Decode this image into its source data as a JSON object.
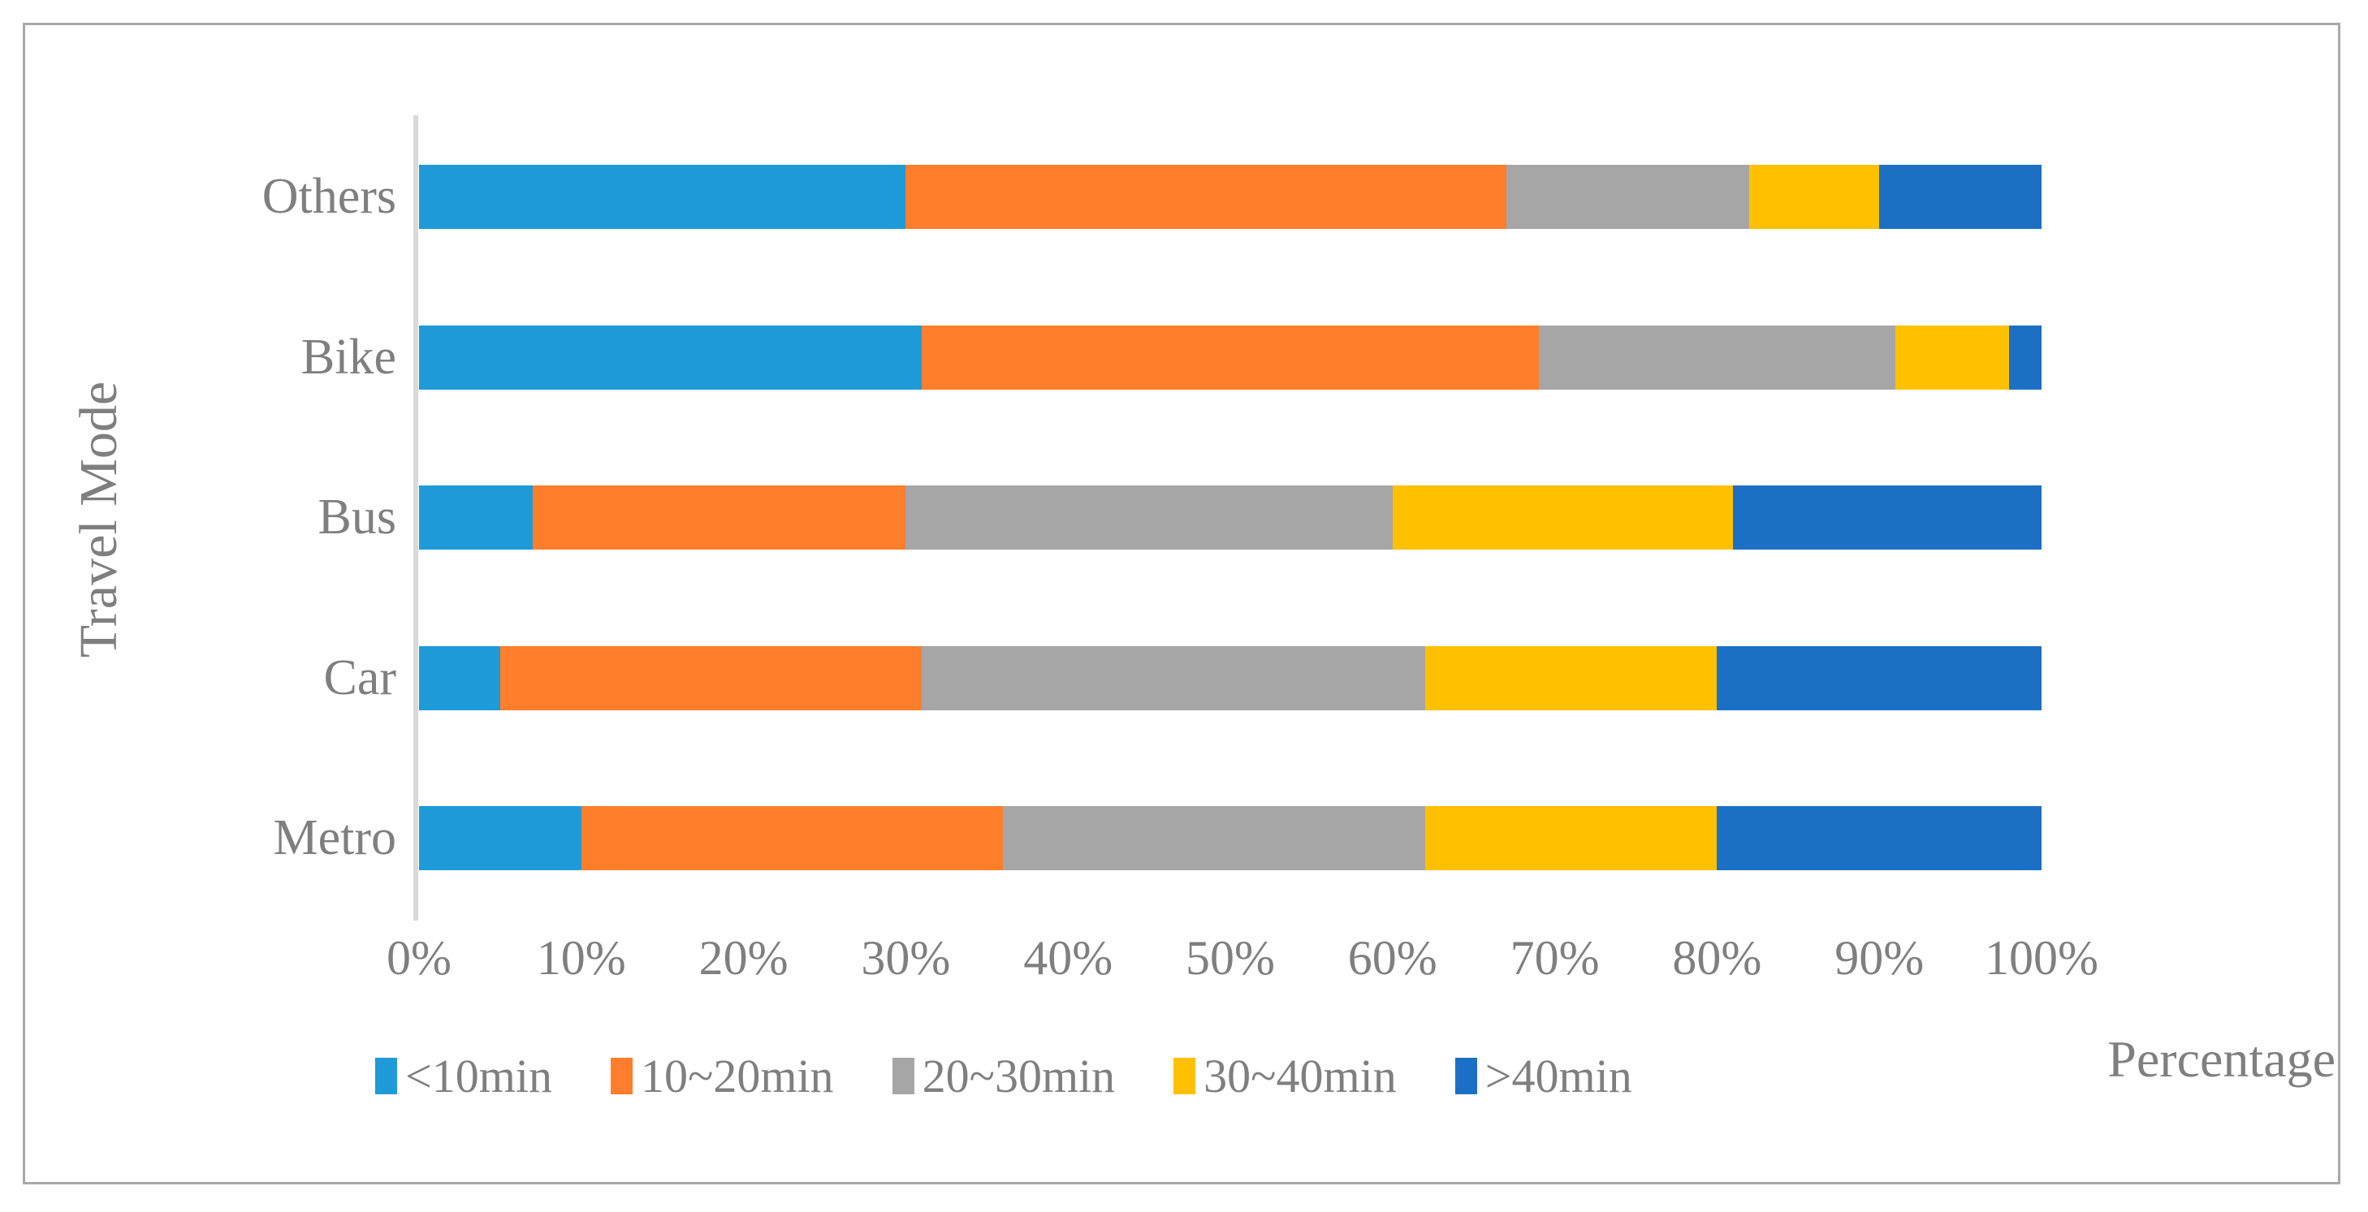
{
  "chart_data": {
    "type": "bar",
    "orientation": "horizontal",
    "stacked": true,
    "title": "",
    "xlabel": "Percentage",
    "ylabel": "Travel Mode",
    "xlim": [
      0,
      100
    ],
    "grid": false,
    "legend_position": "bottom",
    "categories": [
      "Others",
      "Bike",
      "Bus",
      "Car",
      "Metro"
    ],
    "x_ticks": [
      "0%",
      "10%",
      "20%",
      "30%",
      "40%",
      "50%",
      "60%",
      "70%",
      "80%",
      "90%",
      "100%"
    ],
    "series": [
      {
        "name": "<10min",
        "color": "#1e9ad8",
        "values": [
          30,
          31,
          7,
          5,
          10
        ]
      },
      {
        "name": "10~20min",
        "color": "#ff7e2b",
        "values": [
          37,
          38,
          23,
          26,
          26
        ]
      },
      {
        "name": "20~30min",
        "color": "#a6a6a6",
        "values": [
          15,
          22,
          30,
          31,
          26
        ]
      },
      {
        "name": "30~40min",
        "color": "#ffc000",
        "values": [
          8,
          7,
          21,
          18,
          18
        ]
      },
      {
        "name": ">40min",
        "color": "#1b70c5",
        "values": [
          10,
          2,
          19,
          20,
          20
        ]
      }
    ]
  },
  "colors": {
    "text": "#7f7f7f",
    "axis_line": "#d9d9d9",
    "frame_border": "#a9a9a9",
    "background": "#ffffff"
  }
}
